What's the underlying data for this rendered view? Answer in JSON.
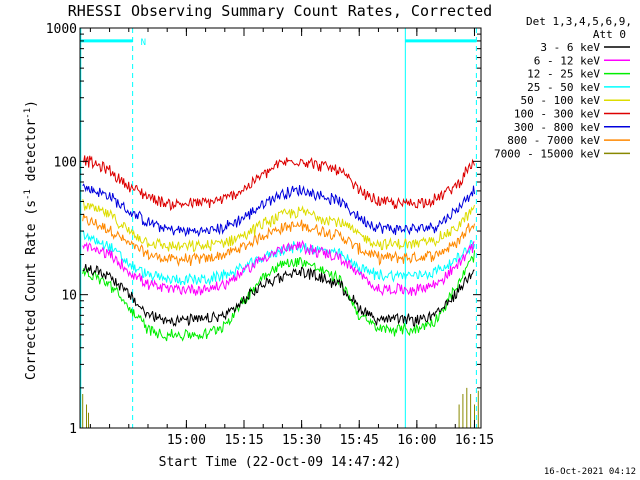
{
  "chart_data": {
    "type": "line",
    "title": "RHESSI Observing Summary Count Rates, Corrected",
    "xlabel": "Start Time (22-Oct-09 14:47:42)",
    "ylabel_main": "Corrected Count Rate (s",
    "ylabel_sup1": "-1",
    "ylabel_mid": " detector",
    "ylabel_sup2": "-1",
    "ylabel_end": ")",
    "yscale": "log",
    "ylim": [
      1,
      1000
    ],
    "y_ticks": [
      {
        "value": 1,
        "label": "1"
      },
      {
        "value": 10,
        "label": "10"
      },
      {
        "value": 100,
        "label": "100"
      },
      {
        "value": 1000,
        "label": "1000"
      }
    ],
    "x_ticks": [
      {
        "label": "15:00",
        "min": 15.0
      },
      {
        "label": "15:15",
        "min": 30.0
      },
      {
        "label": "15:30",
        "min": 45.0
      },
      {
        "label": "15:45",
        "min": 60.0
      },
      {
        "label": "16:00",
        "min": 75.0
      },
      {
        "label": "16:15",
        "min": 90.0
      }
    ],
    "xlim_minutes": [
      -12.7,
      91.7
    ],
    "legend_header": [
      "Det 1,3,4,5,6,9,",
      "Att 0"
    ],
    "legend_placement": "right",
    "series": [
      {
        "name": "3 - 6 keV",
        "color": "#000000",
        "x": [
          -12,
          -5,
          0,
          5,
          10,
          15,
          20,
          25,
          30,
          35,
          40,
          45,
          55,
          60,
          65,
          70,
          75,
          80,
          85,
          90
        ],
        "values": [
          16,
          14,
          10,
          7,
          6.5,
          6.5,
          6.5,
          7,
          9,
          12,
          14,
          15,
          12,
          8,
          6.5,
          6.5,
          6.5,
          7,
          10,
          16
        ]
      },
      {
        "name": "6 - 12 keV",
        "color": "#ff00ff",
        "x": [
          -12,
          -5,
          0,
          5,
          10,
          15,
          20,
          25,
          30,
          35,
          40,
          45,
          55,
          60,
          65,
          70,
          75,
          80,
          85,
          90
        ],
        "values": [
          23,
          20,
          15,
          12,
          11,
          11,
          11,
          12,
          15,
          19,
          22,
          23,
          19,
          14,
          11,
          11,
          11,
          12,
          16,
          24
        ]
      },
      {
        "name": "12 - 25 keV",
        "color": "#00ee00",
        "x": [
          -12,
          -5,
          0,
          5,
          10,
          15,
          20,
          25,
          30,
          35,
          40,
          45,
          55,
          60,
          65,
          70,
          75,
          80,
          85,
          90
        ],
        "values": [
          15,
          12,
          8,
          5.5,
          5,
          5,
          5,
          6,
          9,
          14,
          17,
          18,
          13,
          7,
          5.5,
          5.5,
          5.5,
          6.5,
          11,
          20
        ]
      },
      {
        "name": "25 - 50 keV",
        "color": "#00ffff",
        "x": [
          -12,
          -5,
          0,
          5,
          10,
          15,
          20,
          25,
          30,
          35,
          40,
          45,
          55,
          60,
          65,
          70,
          75,
          80,
          85,
          90
        ],
        "values": [
          28,
          23,
          17,
          14,
          13,
          13,
          13,
          14,
          16,
          19,
          22,
          23,
          20,
          16,
          14,
          14,
          14,
          15,
          18,
          25
        ]
      },
      {
        "name": "50 - 100 keV",
        "color": "#dddd00",
        "x": [
          -12,
          -5,
          0,
          5,
          10,
          15,
          20,
          25,
          30,
          35,
          40,
          45,
          55,
          60,
          65,
          70,
          75,
          80,
          85,
          90
        ],
        "values": [
          47,
          40,
          30,
          25,
          23,
          23,
          23,
          25,
          28,
          34,
          40,
          42,
          35,
          28,
          24,
          24,
          24,
          26,
          31,
          45
        ]
      },
      {
        "name": "100 - 300 keV",
        "color": "#dd0000",
        "x": [
          -12,
          -5,
          0,
          5,
          10,
          15,
          20,
          25,
          30,
          35,
          40,
          45,
          55,
          60,
          65,
          70,
          75,
          80,
          85,
          90
        ],
        "values": [
          105,
          85,
          65,
          55,
          48,
          48,
          49,
          52,
          62,
          80,
          98,
          102,
          85,
          60,
          50,
          48,
          49,
          52,
          65,
          100
        ]
      },
      {
        "name": "300 - 800 keV",
        "color": "#0000dd",
        "x": [
          -12,
          -5,
          0,
          5,
          10,
          15,
          20,
          25,
          30,
          35,
          40,
          45,
          55,
          60,
          65,
          70,
          75,
          80,
          85,
          90
        ],
        "values": [
          65,
          55,
          42,
          35,
          31,
          30,
          30,
          32,
          38,
          48,
          58,
          61,
          50,
          38,
          32,
          31,
          31,
          33,
          42,
          63
        ]
      },
      {
        "name": "800 - 7000 keV",
        "color": "#ff8800",
        "x": [
          -12,
          -5,
          0,
          5,
          10,
          15,
          20,
          25,
          30,
          35,
          40,
          45,
          55,
          60,
          65,
          70,
          75,
          80,
          85,
          90
        ],
        "values": [
          37,
          31,
          24,
          20,
          18.5,
          18.5,
          18.5,
          20,
          23,
          28,
          32,
          33,
          28,
          22,
          19,
          19,
          19,
          20,
          24,
          36
        ]
      },
      {
        "name": "7000 - 15000 keV",
        "color": "#888800",
        "x": [
          -12,
          -11,
          -10.5,
          86,
          87,
          88,
          89,
          90,
          91
        ],
        "values": [
          1.8,
          1.5,
          1.3,
          1.5,
          1.8,
          2.0,
          1.8,
          1.5,
          1.9
        ]
      }
    ],
    "saa_markers": {
      "color": "#00ffff",
      "solid_x": [
        -12.5,
        72
      ],
      "dashed_x": [
        1,
        90.5
      ],
      "bars": [
        {
          "x0": -12.5,
          "x1": 1,
          "value": 800,
          "label": "N"
        },
        {
          "x0": 72,
          "x1": 90.5,
          "value": 800,
          "label": ""
        }
      ]
    },
    "grid": false
  },
  "footer_timestamp": "16-Oct-2021 04:12"
}
